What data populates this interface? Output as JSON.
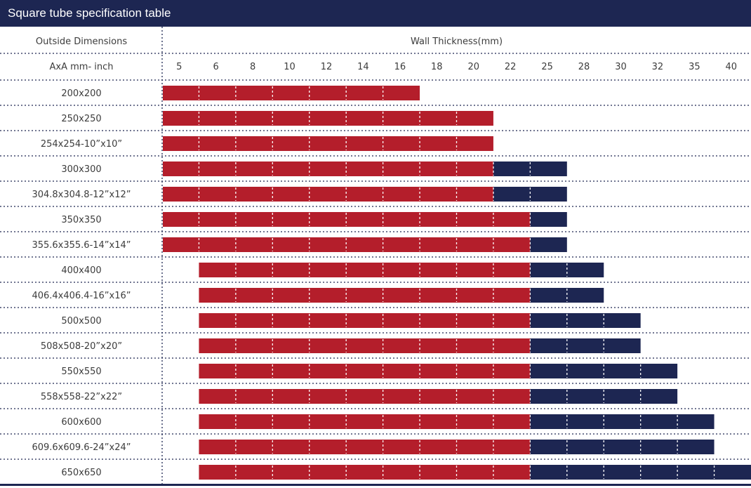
{
  "title": "Square tube specification table",
  "chart_data": {
    "type": "bar",
    "header_left": "Outside Dimensions",
    "header_right": "Wall Thickness(mm)",
    "subheader_left": "AxA  mm- inch",
    "thickness_ticks": [
      "5",
      "6",
      "8",
      "10",
      "12",
      "14",
      "16",
      "18",
      "20",
      "22",
      "25",
      "28",
      "30",
      "32",
      "35",
      "40"
    ],
    "colors": {
      "red": "#b41e2b",
      "navy": "#1d2652"
    },
    "rows": [
      {
        "size": "200x200",
        "red": [
          "5",
          "16"
        ],
        "navy": null
      },
      {
        "size": "250x250",
        "red": [
          "5",
          "20"
        ],
        "navy": null
      },
      {
        "size": "254x254-10”x10”",
        "red": [
          "5",
          "20"
        ],
        "navy": null
      },
      {
        "size": "300x300",
        "red": [
          "5",
          "20"
        ],
        "navy": [
          "22",
          "25"
        ]
      },
      {
        "size": "304.8x304.8-12”x12”",
        "red": [
          "5",
          "20"
        ],
        "navy": [
          "22",
          "25"
        ]
      },
      {
        "size": "350x350",
        "red": [
          "5",
          "22"
        ],
        "navy": [
          "25",
          "25"
        ]
      },
      {
        "size": "355.6x355.6-14”x14”",
        "red": [
          "5",
          "22"
        ],
        "navy": [
          "25",
          "25"
        ]
      },
      {
        "size": "400x400",
        "red": [
          "6",
          "22"
        ],
        "navy": [
          "25",
          "28"
        ]
      },
      {
        "size": "406.4x406.4-16”x16”",
        "red": [
          "6",
          "22"
        ],
        "navy": [
          "25",
          "28"
        ]
      },
      {
        "size": "500x500",
        "red": [
          "6",
          "22"
        ],
        "navy": [
          "25",
          "30"
        ]
      },
      {
        "size": "508x508-20”x20”",
        "red": [
          "6",
          "22"
        ],
        "navy": [
          "25",
          "30"
        ]
      },
      {
        "size": "550x550",
        "red": [
          "6",
          "22"
        ],
        "navy": [
          "25",
          "32"
        ]
      },
      {
        "size": "558x558-22”x22”",
        "red": [
          "6",
          "22"
        ],
        "navy": [
          "25",
          "32"
        ]
      },
      {
        "size": "600x600",
        "red": [
          "6",
          "22"
        ],
        "navy": [
          "25",
          "35"
        ]
      },
      {
        "size": "609.6x609.6-24”x24”",
        "red": [
          "6",
          "22"
        ],
        "navy": [
          "25",
          "35"
        ]
      },
      {
        "size": "650x650",
        "red": [
          "6",
          "22"
        ],
        "navy": [
          "25",
          "40"
        ]
      }
    ]
  }
}
